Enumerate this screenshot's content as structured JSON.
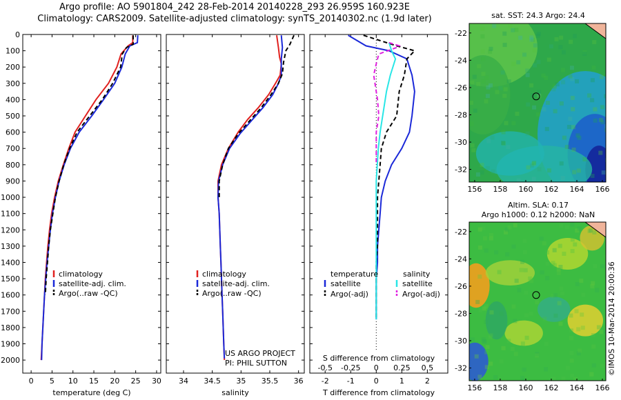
{
  "header": {
    "line1": "Argo profile: AO 5901804_242 28-Feb-2014 20140228_293 26.959S 160.923E",
    "line2": "Climatology: CARS2009. Satellite-adjusted climatology: synTS_20140302.nc (1.9d later)"
  },
  "colors": {
    "climatology": "#e0201e",
    "satellite": "#1a28d8",
    "argo": "#000000",
    "sat_salinity": "#28e6e6",
    "argo_adj_salinity": "#e020e0"
  },
  "chart_data": [
    {
      "type": "line",
      "xlabel": "temperature (deg C)",
      "xlim": [
        -2,
        31
      ],
      "ylim": [
        0,
        2080
      ],
      "xticks": [
        0,
        5,
        10,
        15,
        20,
        25,
        30
      ],
      "yticks": [
        0,
        100,
        200,
        300,
        400,
        500,
        600,
        700,
        800,
        900,
        1000,
        1100,
        1200,
        1300,
        1400,
        1500,
        1600,
        1700,
        1800,
        1900,
        2000
      ],
      "legend": {
        "placement": "center-bottom",
        "entries": [
          "climatology",
          "satellite-adj. clim.",
          "Argo(..raw -QC)"
        ]
      },
      "series": [
        {
          "name": "climatology",
          "color": "#e0201e",
          "style": "solid",
          "points": [
            [
              24.3,
              5
            ],
            [
              24.3,
              50
            ],
            [
              23.2,
              70
            ],
            [
              21.5,
              120
            ],
            [
              20.5,
              200
            ],
            [
              18.5,
              300
            ],
            [
              15.5,
              400
            ],
            [
              13,
              500
            ],
            [
              10.5,
              600
            ],
            [
              9,
              700
            ],
            [
              7.7,
              800
            ],
            [
              6.5,
              900
            ],
            [
              5.6,
              1000
            ],
            [
              4.9,
              1100
            ],
            [
              4.4,
              1200
            ],
            [
              4.0,
              1300
            ],
            [
              3.7,
              1400
            ],
            [
              3.4,
              1500
            ],
            [
              3.2,
              1600
            ],
            [
              3.0,
              1700
            ],
            [
              2.8,
              1800
            ],
            [
              2.6,
              1900
            ],
            [
              2.4,
              2000
            ]
          ]
        },
        {
          "name": "satellite-adj. clim.",
          "color": "#1a28d8",
          "style": "solid",
          "points": [
            [
              25.5,
              5
            ],
            [
              25.4,
              50
            ],
            [
              23.6,
              70
            ],
            [
              22.5,
              120
            ],
            [
              21.7,
              200
            ],
            [
              20,
              300
            ],
            [
              17.3,
              400
            ],
            [
              14.5,
              500
            ],
            [
              11.5,
              600
            ],
            [
              9.4,
              700
            ],
            [
              7.9,
              800
            ],
            [
              6.7,
              900
            ],
            [
              5.8,
              1000
            ],
            [
              5.1,
              1100
            ],
            [
              4.6,
              1200
            ],
            [
              4.2,
              1300
            ],
            [
              3.8,
              1400
            ],
            [
              3.5,
              1500
            ],
            [
              3.2,
              1600
            ],
            [
              3.0,
              1700
            ],
            [
              2.8,
              1800
            ],
            [
              2.6,
              1900
            ],
            [
              2.5,
              2000
            ]
          ]
        },
        {
          "name": "Argo(..raw -QC)",
          "color": "#000000",
          "style": "dashed",
          "points": [
            [
              24.4,
              5
            ],
            [
              24.4,
              60
            ],
            [
              22.8,
              80
            ],
            [
              21.8,
              120
            ],
            [
              21.4,
              200
            ],
            [
              19.5,
              300
            ],
            [
              17,
              400
            ],
            [
              14,
              500
            ],
            [
              11,
              600
            ],
            [
              9.2,
              700
            ],
            [
              7.8,
              800
            ],
            [
              6.7,
              900
            ],
            [
              5.8,
              1000
            ],
            [
              5.2,
              1100
            ],
            [
              4.6,
              1200
            ],
            [
              4.2,
              1300
            ],
            [
              3.9,
              1400
            ],
            [
              3.6,
              1500
            ],
            [
              3.4,
              1600
            ]
          ]
        }
      ]
    },
    {
      "type": "line",
      "xlabel": "salinity",
      "xlim": [
        33.7,
        36.1
      ],
      "ylim": [
        0,
        2080
      ],
      "xticks": [
        34,
        34.5,
        35,
        35.5,
        36
      ],
      "legend": {
        "placement": "center-bottom",
        "entries": [
          "climatology",
          "satellite-adj. clim.",
          "Argo(..raw -QC)"
        ]
      },
      "annotation": [
        "US ARGO PROJECT",
        "PI: PHIL SUTTON"
      ],
      "series": [
        {
          "name": "climatology",
          "color": "#e0201e",
          "style": "solid",
          "points": [
            [
              35.62,
              5
            ],
            [
              35.65,
              80
            ],
            [
              35.67,
              140
            ],
            [
              35.7,
              180
            ],
            [
              35.68,
              250
            ],
            [
              35.6,
              300
            ],
            [
              35.48,
              370
            ],
            [
              35.3,
              450
            ],
            [
              35.12,
              520
            ],
            [
              34.95,
              600
            ],
            [
              34.78,
              700
            ],
            [
              34.66,
              800
            ],
            [
              34.6,
              900
            ],
            [
              34.6,
              1000
            ],
            [
              34.62,
              1100
            ],
            [
              34.63,
              1200
            ],
            [
              34.64,
              1300
            ],
            [
              34.65,
              1400
            ],
            [
              34.66,
              1500
            ],
            [
              34.67,
              1600
            ],
            [
              34.68,
              1700
            ],
            [
              34.69,
              1800
            ],
            [
              34.7,
              1900
            ],
            [
              34.71,
              2000
            ]
          ]
        },
        {
          "name": "satellite-adj. clim.",
          "color": "#1a28d8",
          "style": "solid",
          "points": [
            [
              35.7,
              5
            ],
            [
              35.72,
              80
            ],
            [
              35.7,
              150
            ],
            [
              35.7,
              200
            ],
            [
              35.7,
              250
            ],
            [
              35.65,
              300
            ],
            [
              35.55,
              370
            ],
            [
              35.38,
              450
            ],
            [
              35.18,
              530
            ],
            [
              34.98,
              610
            ],
            [
              34.8,
              700
            ],
            [
              34.68,
              800
            ],
            [
              34.61,
              900
            ],
            [
              34.6,
              1000
            ],
            [
              34.62,
              1100
            ],
            [
              34.63,
              1200
            ],
            [
              34.64,
              1300
            ],
            [
              34.65,
              1400
            ],
            [
              34.66,
              1500
            ],
            [
              34.67,
              1600
            ],
            [
              34.68,
              1700
            ],
            [
              34.69,
              1800
            ],
            [
              34.7,
              1900
            ],
            [
              34.71,
              1990
            ]
          ]
        },
        {
          "name": "Argo(..raw -QC)",
          "color": "#000000",
          "style": "dashed",
          "points": [
            [
              35.92,
              5
            ],
            [
              35.85,
              60
            ],
            [
              35.78,
              100
            ],
            [
              35.74,
              170
            ],
            [
              35.72,
              240
            ],
            [
              35.65,
              300
            ],
            [
              35.52,
              370
            ],
            [
              35.35,
              450
            ],
            [
              35.15,
              530
            ],
            [
              34.95,
              610
            ],
            [
              34.78,
              700
            ],
            [
              34.68,
              800
            ],
            [
              34.62,
              900
            ],
            [
              34.62,
              1000
            ]
          ]
        }
      ]
    },
    {
      "type": "line",
      "xlabel": "T difference from climatology",
      "xlabel_top": "S difference from climatology",
      "xlim": [
        -2.6,
        2.8
      ],
      "ylim": [
        0,
        2080
      ],
      "xticks_bottom": [
        -2,
        -1,
        0,
        1,
        2
      ],
      "xticks_top": [
        {
          "v": -0.5,
          "label": "-0.5"
        },
        {
          "v": -0.25,
          "label": "-0.25"
        },
        {
          "v": 0,
          "label": "0"
        },
        {
          "v": 0.25,
          "label": "0.25"
        },
        {
          "v": 0.5,
          "label": "0.5"
        }
      ],
      "legend": {
        "placement": "center-bottom",
        "groups": [
          {
            "title": "temperature",
            "entries": [
              "satellite",
              "Argo(-adj)"
            ]
          },
          {
            "title": "salinity",
            "entries": [
              "satellite",
              "Argo(-adj)"
            ]
          }
        ]
      },
      "series": [
        {
          "name": "temperature satellite",
          "color": "#1a28d8",
          "style": "solid",
          "points": [
            [
              -1.1,
              5
            ],
            [
              -0.4,
              70
            ],
            [
              0.5,
              100
            ],
            [
              1.2,
              150
            ],
            [
              1.4,
              250
            ],
            [
              1.5,
              350
            ],
            [
              1.4,
              500
            ],
            [
              1.3,
              600
            ],
            [
              1.0,
              700
            ],
            [
              0.6,
              800
            ],
            [
              0.35,
              900
            ],
            [
              0.2,
              1000
            ],
            [
              0.15,
              1100
            ],
            [
              0.1,
              1200
            ],
            [
              0.05,
              1300
            ],
            [
              0.05,
              1400
            ],
            [
              0,
              1500
            ],
            [
              0,
              1600
            ],
            [
              0,
              1700
            ],
            [
              0,
              1750
            ]
          ]
        },
        {
          "name": "temperature Argo(-adj)",
          "color": "#000000",
          "style": "dashed",
          "points": [
            [
              -0.5,
              5
            ],
            [
              0.8,
              70
            ],
            [
              1.5,
              100
            ],
            [
              1.2,
              150
            ],
            [
              1.1,
              250
            ],
            [
              0.9,
              350
            ],
            [
              0.8,
              500
            ],
            [
              0.4,
              600
            ],
            [
              0.2,
              700
            ],
            [
              0.15,
              800
            ],
            [
              0.1,
              900
            ],
            [
              0.05,
              1000
            ],
            [
              0.05,
              1100
            ],
            [
              0.05,
              1200
            ],
            [
              0.05,
              1300
            ],
            [
              0,
              1400
            ],
            [
              0,
              1500
            ],
            [
              0,
              1600
            ],
            [
              0,
              1700
            ],
            [
              0,
              1750
            ]
          ]
        },
        {
          "name": "salinity satellite",
          "color": "#28e6e6",
          "style": "solid",
          "points": [
            [
              0.5,
              50
            ],
            [
              0.6,
              100
            ],
            [
              0.75,
              150
            ],
            [
              0.55,
              250
            ],
            [
              0.4,
              350
            ],
            [
              0.25,
              500
            ],
            [
              0.15,
              600
            ],
            [
              0.08,
              700
            ],
            [
              0.04,
              800
            ],
            [
              0,
              900
            ],
            [
              0,
              1000
            ],
            [
              0,
              1100
            ],
            [
              0,
              1200
            ],
            [
              0,
              1300
            ],
            [
              0,
              1400
            ],
            [
              0,
              1500
            ],
            [
              0,
              1600
            ],
            [
              0,
              1700
            ],
            [
              0,
              1750
            ]
          ]
        },
        {
          "name": "salinity Argo(-adj)",
          "color": "#e020e0",
          "style": "dashed",
          "points": [
            [
              0.5,
              50
            ],
            [
              0.9,
              70
            ],
            [
              0.8,
              80
            ],
            [
              0.1,
              120
            ],
            [
              0.0,
              180
            ],
            [
              -0.1,
              250
            ],
            [
              0.05,
              400
            ],
            [
              0.1,
              500
            ],
            [
              0.0,
              600
            ],
            [
              0.0,
              700
            ],
            [
              0.0,
              800
            ]
          ]
        }
      ]
    }
  ],
  "maps": {
    "sst": {
      "title": "sat. SST: 24.3 Argo: 24.4",
      "lat_ticks": [
        "-22",
        "-24",
        "-26",
        "-28",
        "-30",
        "-32"
      ],
      "lon_ticks": [
        "156",
        "158",
        "160",
        "162",
        "164",
        "166"
      ]
    },
    "sla": {
      "title1": "Altim. SLA: 0.17",
      "title2": "Argo h1000: 0.12 h2000: NaN",
      "lat_ticks": [
        "-22",
        "-24",
        "-26",
        "-28",
        "-30",
        "-32"
      ],
      "lon_ticks": [
        "156",
        "158",
        "160",
        "162",
        "164",
        "166"
      ]
    }
  },
  "credit": {
    "project": "US ARGO PROJECT",
    "pi": "PI: PHIL SUTTON",
    "imos": "©IMOS 10-Mar-2014 20:00:36"
  }
}
